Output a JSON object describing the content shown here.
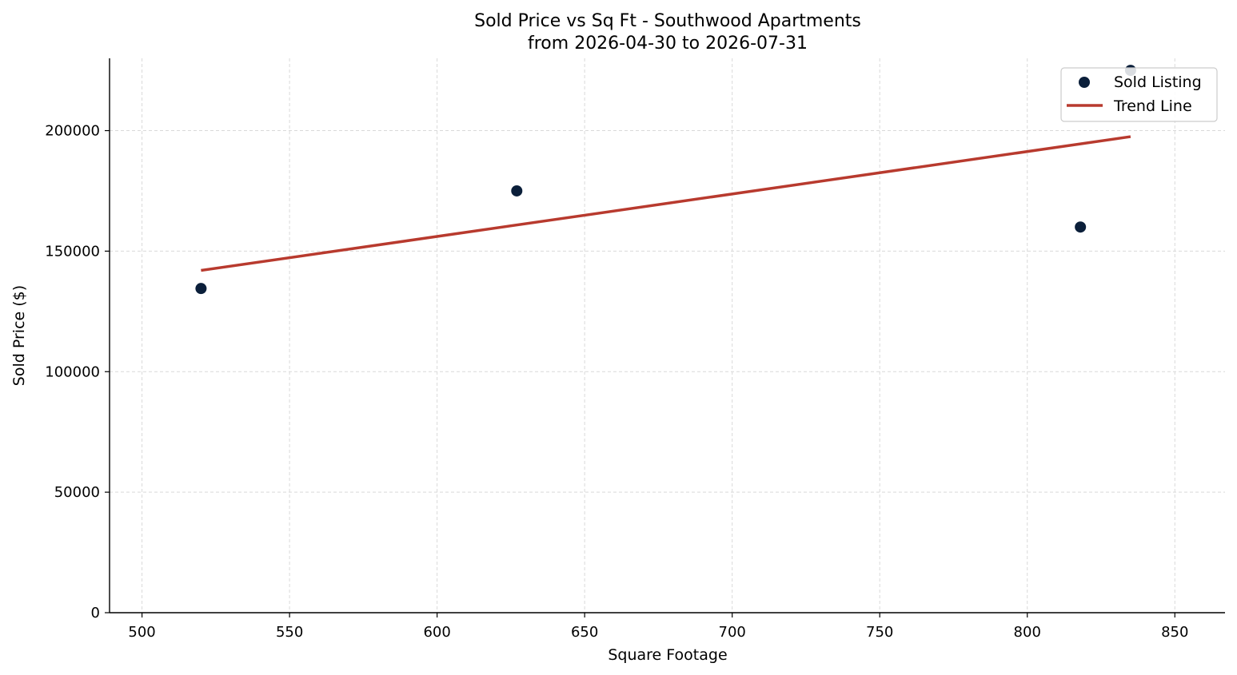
{
  "chart_data": {
    "type": "scatter",
    "title": "Sold Price vs Sq Ft - Southwood Apartments",
    "subtitle": "from 2026-04-30 to 2026-07-31",
    "xlabel": "Square Footage",
    "ylabel": "Sold Price ($)",
    "xlim": [
      489,
      867
    ],
    "ylim": [
      0,
      230000
    ],
    "xticks": [
      500,
      550,
      600,
      650,
      700,
      750,
      800,
      850
    ],
    "yticks": [
      0,
      50000,
      100000,
      150000,
      200000
    ],
    "grid": true,
    "legend_position": "top-right",
    "series": [
      {
        "name": "Sold Listing",
        "kind": "scatter",
        "color": "#0b1f3a",
        "points": [
          {
            "x": 520,
            "y": 134500
          },
          {
            "x": 627,
            "y": 175000
          },
          {
            "x": 818,
            "y": 160000
          },
          {
            "x": 835,
            "y": 225000
          }
        ]
      },
      {
        "name": "Trend Line",
        "kind": "line",
        "color": "#b83a2e",
        "points": [
          {
            "x": 520,
            "y": 142000
          },
          {
            "x": 835,
            "y": 197500
          }
        ]
      }
    ]
  }
}
